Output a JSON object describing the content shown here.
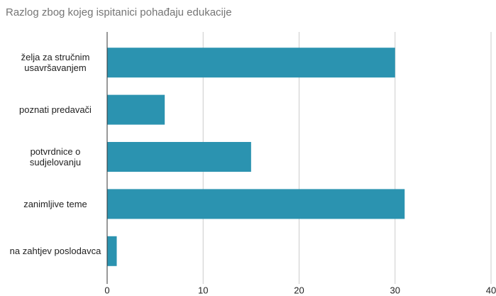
{
  "chart_data": {
    "type": "bar",
    "orientation": "horizontal",
    "title": "Razlog zbog kojeg ispitanici pohađaju edukacije",
    "categories": [
      "želja za stručnim usavršavanjem",
      "poznati predavači",
      "potvrdnice o sudjelovanju",
      "zanimljive teme",
      "na zahtjev poslodavca"
    ],
    "values": [
      30,
      6,
      15,
      31,
      1
    ],
    "color": "#2b93b0",
    "xlim": [
      0,
      40
    ],
    "xticks": [
      0,
      10,
      20,
      30,
      40
    ],
    "grid": true
  }
}
